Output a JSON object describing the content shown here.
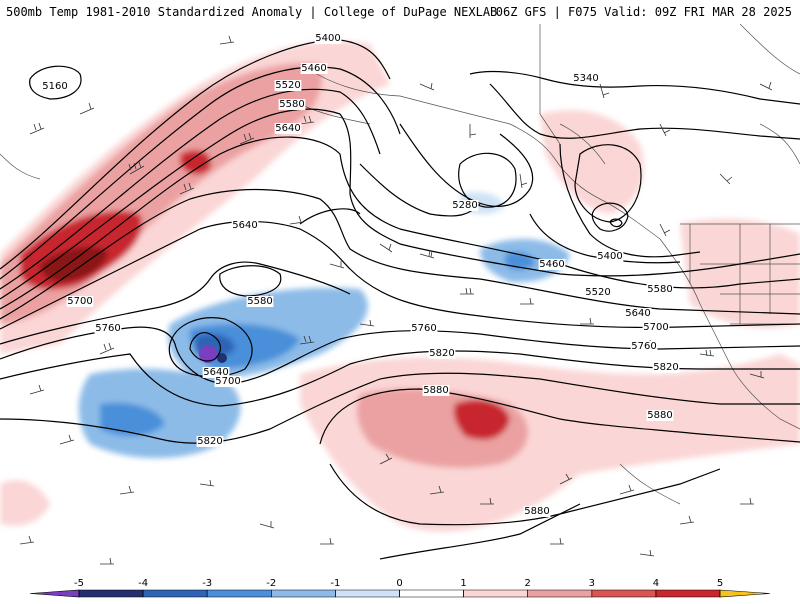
{
  "header": {
    "title_left": "500mb Temp 1981-2010 Standardized Anomaly | College of DuPage NEXLAB",
    "title_right": "06Z GFS | F075 Valid: 09Z FRI MAR 28 2025"
  },
  "contour_labels": [
    "5400",
    "5460",
    "5520",
    "5580",
    "5640",
    "5160",
    "5640",
    "5580",
    "5700",
    "5760",
    "5640",
    "5700",
    "5820",
    "5280",
    "5340",
    "5460",
    "5400",
    "5520",
    "5580",
    "5640",
    "5700",
    "5760",
    "5760",
    "5820",
    "5880",
    "5820",
    "5880",
    "5880"
  ],
  "legend": {
    "ticks": [
      "-5",
      "-4",
      "-3",
      "-2",
      "-1",
      "0",
      "1",
      "2",
      "3",
      "4",
      "5"
    ],
    "colors": [
      "#7a3fbf",
      "#22306f",
      "#2f64b5",
      "#4a8fd9",
      "#8cbbe8",
      "#cfe2f5",
      "#ffffff",
      "#fbd6d6",
      "#eba1a1",
      "#d95555",
      "#c8282d",
      "#8a1417",
      "#f7c21b"
    ]
  }
}
